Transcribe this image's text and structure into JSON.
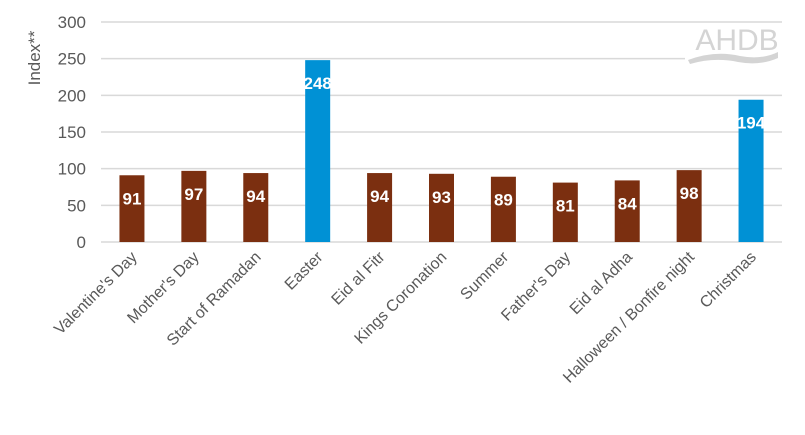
{
  "chart_data": {
    "type": "bar",
    "title": "",
    "xlabel": "",
    "ylabel": "Index**",
    "ylim": [
      0,
      300
    ],
    "yticks": [
      0,
      50,
      100,
      150,
      200,
      250,
      300
    ],
    "grid": true,
    "categories": [
      "Valentine's Day",
      "Mother's Day",
      "Start of Ramadan",
      "Easter",
      "Eid al Fitr",
      "Kings Coronation",
      "Summer",
      "Father's Day",
      "Eid al Adha",
      "Halloween / Bonfire night",
      "Christmas"
    ],
    "values": [
      91,
      97,
      94,
      248,
      94,
      93,
      89,
      81,
      84,
      98,
      194
    ],
    "highlighted": [
      "Easter",
      "Christmas"
    ],
    "colors": {
      "default": "#7B2F10",
      "highlight": "#0091D5"
    },
    "data_labels": true
  },
  "logo": {
    "text": "AHDB"
  }
}
